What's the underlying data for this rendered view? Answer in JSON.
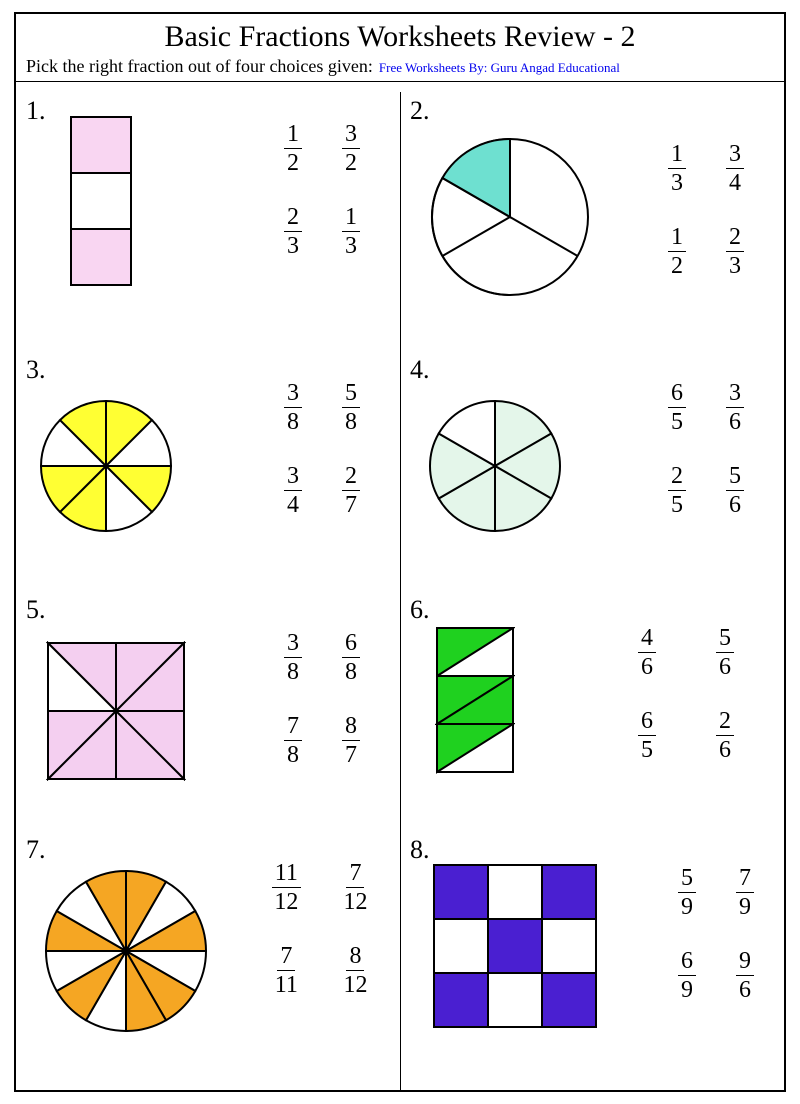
{
  "title": "Basic Fractions Worksheets Review - 2",
  "instruction": "Pick the right fraction out of four choices given:",
  "credit": "Free Worksheets By: Guru Angad Educational",
  "colors": {
    "stroke": "#000000",
    "credit": "#0000ee",
    "q1_fill": "#f9d6f2",
    "q2_fill": "#6ee0d0",
    "q3_fill": "#ffff33",
    "q4_fill": "#e4f6ea",
    "q5_fill": "#f4cff0",
    "q6_fill": "#1fd11f",
    "q7_fill": "#f5a623",
    "q8_fill": "#4a1fd1"
  },
  "questions": [
    {
      "num": "1.",
      "choices": [
        [
          "1",
          "2"
        ],
        [
          "3",
          "2"
        ],
        [
          "2",
          "3"
        ],
        [
          "1",
          "3"
        ]
      ],
      "shape": {
        "type": "rect3",
        "parts": 3,
        "filled": [
          0,
          2
        ]
      }
    },
    {
      "num": "2.",
      "choices": [
        [
          "1",
          "3"
        ],
        [
          "3",
          "4"
        ],
        [
          "1",
          "2"
        ],
        [
          "2",
          "3"
        ]
      ],
      "shape": {
        "type": "pie3",
        "parts": 3,
        "filled": [
          0
        ]
      }
    },
    {
      "num": "3.",
      "choices": [
        [
          "3",
          "8"
        ],
        [
          "5",
          "8"
        ],
        [
          "3",
          "4"
        ],
        [
          "2",
          "7"
        ]
      ],
      "shape": {
        "type": "pie8",
        "parts": 8,
        "filled": [
          0,
          2,
          4,
          5,
          7
        ]
      }
    },
    {
      "num": "4.",
      "choices": [
        [
          "6",
          "5"
        ],
        [
          "3",
          "6"
        ],
        [
          "2",
          "5"
        ],
        [
          "5",
          "6"
        ]
      ],
      "shape": {
        "type": "pie6",
        "parts": 6,
        "filled": [
          0,
          1,
          2,
          3,
          4
        ]
      }
    },
    {
      "num": "5.",
      "choices": [
        [
          "3",
          "8"
        ],
        [
          "6",
          "8"
        ],
        [
          "7",
          "8"
        ],
        [
          "8",
          "7"
        ]
      ],
      "shape": {
        "type": "sq8",
        "parts": 8,
        "filled": [
          0,
          1,
          2,
          3,
          4,
          5,
          6
        ]
      }
    },
    {
      "num": "6.",
      "choices": [
        [
          "4",
          "6"
        ],
        [
          "5",
          "6"
        ],
        [
          "6",
          "5"
        ],
        [
          "2",
          "6"
        ]
      ],
      "shape": {
        "type": "rect6tri",
        "parts": 6,
        "filled": [
          0,
          2,
          3,
          4
        ]
      }
    },
    {
      "num": "7.",
      "choices": [
        [
          "11",
          "12"
        ],
        [
          "7",
          "12"
        ],
        [
          "7",
          "11"
        ],
        [
          "8",
          "12"
        ]
      ],
      "shape": {
        "type": "pie12",
        "parts": 12,
        "filled": [
          0,
          2,
          4,
          5,
          7,
          9,
          11
        ]
      }
    },
    {
      "num": "8.",
      "choices": [
        [
          "5",
          "9"
        ],
        [
          "7",
          "9"
        ],
        [
          "6",
          "9"
        ],
        [
          "9",
          "6"
        ]
      ],
      "shape": {
        "type": "grid9",
        "parts": 9,
        "filled": [
          0,
          2,
          4,
          6,
          8
        ]
      }
    }
  ]
}
